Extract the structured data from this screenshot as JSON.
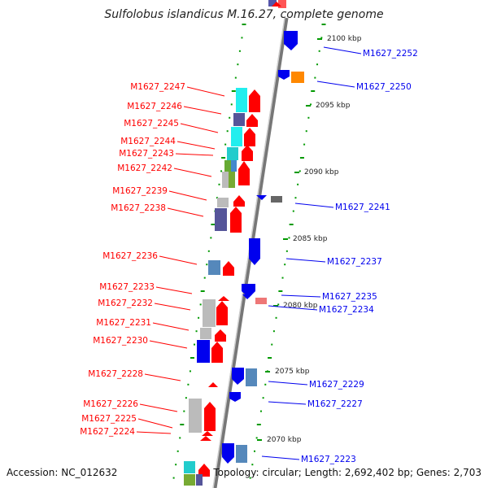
{
  "title": "Sulfolobus islandicus M.16.27, complete genome",
  "footer": {
    "accession": "Accession: NC_012632",
    "summary": "Topology: circular; Length: 2,692,402 bp; Genes: 2,703"
  },
  "colors": {
    "strand_left": "#ff0000",
    "strand_right": "#0000ee",
    "backbone": "#888888",
    "tick": "#009900"
  },
  "scale_ticks": [
    "2100 kbp",
    "2095 kbp",
    "2090 kbp",
    "2085 kbp",
    "2080 kbp",
    "2075 kbp",
    "2070 kbp"
  ],
  "left_labels": [
    "M1627_2247",
    "M1627_2246",
    "M1627_2245",
    "M1627_2244",
    "M1627_2243",
    "M1627_2242",
    "M1627_2239",
    "M1627_2238",
    "M1627_2236",
    "M1627_2233",
    "M1627_2232",
    "M1627_2231",
    "M1627_2230",
    "M1627_2228",
    "M1627_2226",
    "M1627_2225",
    "M1627_2224"
  ],
  "right_labels": [
    "M1627_2252",
    "M1627_2250",
    "M1627_2241",
    "M1627_2237",
    "M1627_2235",
    "M1627_2234",
    "M1627_2229",
    "M1627_2227",
    "M1627_2223"
  ]
}
